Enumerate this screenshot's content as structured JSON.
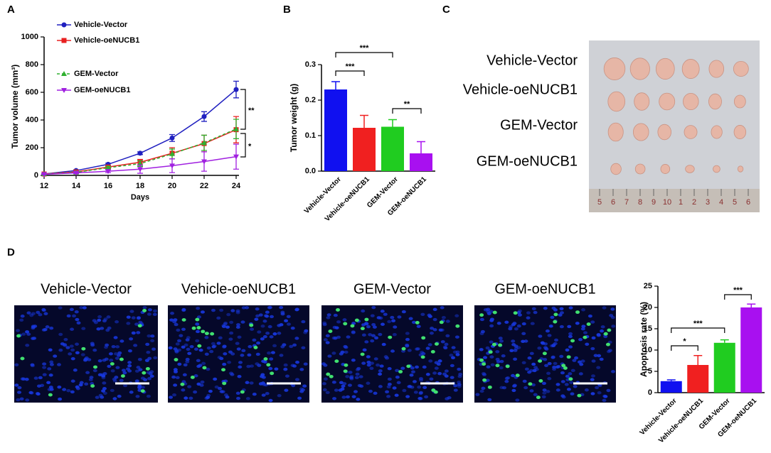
{
  "panel_labels": [
    "A",
    "B",
    "C",
    "D"
  ],
  "chart_data": [
    {
      "type": "line",
      "y_label": "Tumor volume (mm³)",
      "x_label": "Days",
      "x": [
        12,
        14,
        16,
        18,
        20,
        22,
        24
      ],
      "xlim": [
        12,
        24
      ],
      "xticks": [
        12,
        14,
        16,
        18,
        20,
        22,
        24
      ],
      "ylim": [
        0,
        1000
      ],
      "yticks": [
        0,
        200,
        400,
        600,
        800,
        1000
      ],
      "series": [
        {
          "name": "Vehicle-Vector",
          "color": "#2020c0",
          "marker": "circle",
          "dashed": false,
          "values": [
            10,
            35,
            80,
            160,
            270,
            425,
            620
          ],
          "errors": [
            2,
            5,
            8,
            10,
            25,
            35,
            60
          ]
        },
        {
          "name": "Vehicle-oeNUCB1",
          "color": "#e82020",
          "marker": "square",
          "dashed": false,
          "values": [
            10,
            25,
            60,
            95,
            160,
            230,
            330
          ],
          "errors": [
            2,
            5,
            10,
            20,
            40,
            60,
            95
          ]
        },
        {
          "name": "GEM-Vector",
          "color": "#30b030",
          "marker": "triangle-up",
          "dashed": true,
          "values": [
            10,
            22,
            55,
            85,
            155,
            235,
            335
          ],
          "errors": [
            2,
            5,
            10,
            20,
            35,
            55,
            70
          ]
        },
        {
          "name": "GEM-oeNUCB1",
          "color": "#a020e0",
          "marker": "triangle-down",
          "dashed": false,
          "values": [
            8,
            18,
            30,
            45,
            70,
            100,
            135
          ],
          "errors": [
            2,
            5,
            10,
            30,
            50,
            70,
            90
          ]
        }
      ],
      "annotations": [
        "**",
        "*"
      ]
    },
    {
      "type": "bar",
      "y_label": "Tumor weight (g)",
      "categories": [
        "Vehicle-Vector",
        "Vehicle-oeNUCB1",
        "GEM-Vector",
        "GEM-oeNUCB1"
      ],
      "values": [
        0.23,
        0.122,
        0.125,
        0.05
      ],
      "errors": [
        0.022,
        0.035,
        0.02,
        0.033
      ],
      "colors": [
        "#1010f0",
        "#f02020",
        "#20cc20",
        "#a810f0"
      ],
      "ylim": [
        0,
        0.3
      ],
      "yticks": [
        {
          "value": 0,
          "label": "0.0"
        },
        0.1,
        0.2,
        0.3
      ],
      "annotations": [
        "***",
        "***",
        "**"
      ]
    },
    {
      "type": "bar",
      "y_label": "Apoptosis rate (%)",
      "categories": [
        "Vehicle-Vector",
        "Vehicle-oeNUCB1",
        "GEM-Vector",
        "GEM-oeNUCB1"
      ],
      "values": [
        2.7,
        6.5,
        11.7,
        20
      ],
      "errors": [
        0.3,
        2.2,
        0.7,
        0.8
      ],
      "colors": [
        "#1010f0",
        "#f02020",
        "#20cc20",
        "#a810f0"
      ],
      "ylim": [
        0,
        25
      ],
      "yticks": [
        0,
        5,
        10,
        15,
        20,
        25
      ],
      "annotations": [
        "*",
        "***",
        "***"
      ]
    }
  ],
  "photo": {
    "row_labels": [
      "Vehicle-Vector",
      "Vehicle-oeNUCB1",
      "GEM-Vector",
      "GEM-oeNUCB1"
    ],
    "ruler": [
      "5",
      "6",
      "7",
      "8",
      "9",
      "10",
      "1",
      "2",
      "3",
      "4",
      "5",
      "6"
    ]
  },
  "micrographs": {
    "labels": [
      "Vehicle-Vector",
      "Vehicle-oeNUCB1",
      "GEM-Vector",
      "GEM-oeNUCB1"
    ]
  }
}
